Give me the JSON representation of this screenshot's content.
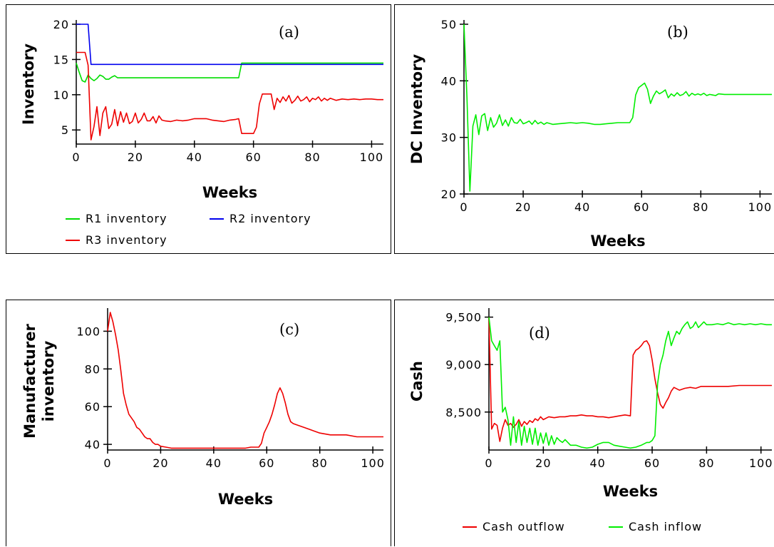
{
  "chart_data": [
    {
      "id": "a",
      "type": "line",
      "panel_label": "(a)",
      "xlabel": "Weeks",
      "ylabel": "Inventory",
      "xlim": [
        0,
        104
      ],
      "ylim": [
        3,
        20
      ],
      "xticks": [
        0,
        20,
        40,
        60,
        80,
        100
      ],
      "yticks": [
        5,
        10,
        15,
        20
      ],
      "legend": "bottom",
      "series": [
        {
          "name": "R1 inventory",
          "color": "#00dd00",
          "x": [
            0,
            1,
            2,
            3,
            4,
            5,
            6,
            7,
            8,
            9,
            10,
            11,
            12,
            13,
            14,
            16,
            20,
            30,
            40,
            50,
            55,
            56,
            57,
            60,
            80,
            104
          ],
          "y": [
            14.5,
            13.2,
            12.0,
            11.8,
            12.8,
            12.3,
            12.0,
            12.3,
            12.8,
            12.6,
            12.2,
            12.2,
            12.5,
            12.7,
            12.4,
            12.4,
            12.4,
            12.4,
            12.4,
            12.4,
            12.4,
            14.5,
            14.5,
            14.5,
            14.5,
            14.5
          ]
        },
        {
          "name": "R2 inventory",
          "color": "#0000ee",
          "x": [
            0,
            3,
            4,
            5,
            104
          ],
          "y": [
            20,
            20,
            20,
            14.3,
            14.3
          ]
        },
        {
          "name": "R3 inventory",
          "color": "#ee0000",
          "x": [
            0,
            3,
            4,
            5,
            6,
            7,
            8,
            9,
            10,
            11,
            12,
            13,
            14,
            15,
            16,
            17,
            18,
            19,
            20,
            21,
            22,
            23,
            24,
            25,
            26,
            27,
            28,
            29,
            30,
            32,
            34,
            36,
            38,
            40,
            42,
            44,
            46,
            48,
            50,
            52,
            54,
            55,
            56,
            58,
            60,
            61,
            62,
            63,
            64,
            65,
            66,
            67,
            68,
            69,
            70,
            71,
            72,
            73,
            74,
            75,
            76,
            77,
            78,
            79,
            80,
            81,
            82,
            83,
            84,
            85,
            86,
            88,
            90,
            92,
            94,
            96,
            98,
            100,
            102,
            104
          ],
          "y": [
            16,
            16,
            14.2,
            3.6,
            5.5,
            8.3,
            4.2,
            7.4,
            8.3,
            5.2,
            5.8,
            7.9,
            5.6,
            7.6,
            6.1,
            7.4,
            5.9,
            6.2,
            7.4,
            6.0,
            6.5,
            7.4,
            6.3,
            6.3,
            6.9,
            6.0,
            7.0,
            6.4,
            6.3,
            6.2,
            6.4,
            6.3,
            6.4,
            6.6,
            6.6,
            6.6,
            6.4,
            6.3,
            6.2,
            6.4,
            6.5,
            6.6,
            4.5,
            4.5,
            4.5,
            5.4,
            8.7,
            10.1,
            10.1,
            10.1,
            10.1,
            7.9,
            9.5,
            8.9,
            9.7,
            9.1,
            9.9,
            8.8,
            9.2,
            9.8,
            9.1,
            9.3,
            9.7,
            9.0,
            9.5,
            9.3,
            9.7,
            9.1,
            9.5,
            9.2,
            9.5,
            9.2,
            9.4,
            9.3,
            9.4,
            9.3,
            9.4,
            9.4,
            9.3,
            9.3
          ]
        }
      ]
    },
    {
      "id": "b",
      "type": "line",
      "panel_label": "(b)",
      "xlabel": "Weeks",
      "ylabel": "DC Inventory",
      "xlim": [
        0,
        104
      ],
      "ylim": [
        20,
        50
      ],
      "xticks": [
        0,
        20,
        40,
        60,
        80,
        100
      ],
      "yticks": [
        20,
        30,
        40,
        50
      ],
      "series": [
        {
          "name": "",
          "color": "#00ee00",
          "x": [
            0,
            1,
            2,
            3,
            4,
            5,
            6,
            7,
            8,
            9,
            10,
            11,
            12,
            13,
            14,
            15,
            16,
            17,
            18,
            19,
            20,
            21,
            22,
            23,
            24,
            25,
            26,
            27,
            28,
            30,
            32,
            34,
            36,
            38,
            40,
            42,
            44,
            46,
            48,
            50,
            52,
            54,
            56,
            57,
            58,
            59,
            60,
            61,
            62,
            63,
            64,
            65,
            66,
            67,
            68,
            69,
            70,
            71,
            72,
            73,
            74,
            75,
            76,
            77,
            78,
            79,
            80,
            81,
            82,
            83,
            84,
            85,
            86,
            88,
            90,
            92,
            96,
            100,
            104
          ],
          "y": [
            50,
            37,
            20.5,
            32.0,
            34.0,
            30.5,
            33.8,
            34.2,
            31.2,
            33.5,
            31.8,
            32.5,
            34.0,
            32.1,
            33.1,
            32.0,
            33.5,
            32.6,
            32.5,
            33.2,
            32.4,
            32.6,
            32.9,
            32.3,
            33.0,
            32.4,
            32.7,
            32.3,
            32.6,
            32.3,
            32.4,
            32.5,
            32.6,
            32.5,
            32.6,
            32.5,
            32.3,
            32.3,
            32.4,
            32.5,
            32.6,
            32.6,
            32.6,
            33.5,
            37.5,
            38.8,
            39.2,
            39.6,
            38.5,
            36.0,
            37.3,
            38.2,
            37.7,
            38.0,
            38.4,
            37.0,
            37.7,
            37.3,
            37.9,
            37.4,
            37.6,
            38.1,
            37.3,
            37.8,
            37.5,
            37.7,
            37.5,
            37.8,
            37.4,
            37.6,
            37.5,
            37.4,
            37.7,
            37.6,
            37.6,
            37.6,
            37.6,
            37.6,
            37.6
          ]
        }
      ]
    },
    {
      "id": "c",
      "type": "line",
      "panel_label": "(c)",
      "xlabel": "Weeks",
      "ylabel": "Manufacturer inventory",
      "xlim": [
        0,
        104
      ],
      "ylim": [
        37,
        110
      ],
      "xticks": [
        0,
        20,
        40,
        60,
        80,
        100
      ],
      "yticks": [
        40,
        60,
        80,
        100
      ],
      "series": [
        {
          "name": "",
          "color": "#ee0000",
          "x": [
            0,
            1,
            2,
            3,
            4,
            5,
            6,
            7,
            8,
            9,
            10,
            11,
            12,
            13,
            14,
            15,
            16,
            17,
            18,
            19,
            20,
            22,
            24,
            26,
            28,
            30,
            34,
            38,
            42,
            46,
            50,
            52,
            54,
            55,
            56,
            57,
            58,
            59,
            60,
            61,
            62,
            63,
            64,
            65,
            66,
            67,
            68,
            69,
            70,
            72,
            74,
            76,
            78,
            80,
            84,
            86,
            90,
            94,
            96,
            100,
            104
          ],
          "y": [
            100,
            110,
            105,
            98,
            90,
            79,
            67,
            61,
            56,
            54,
            52,
            49,
            48,
            46,
            44,
            43,
            43,
            41,
            40,
            40,
            39,
            38.5,
            38,
            38,
            38,
            38,
            38,
            38,
            38,
            38,
            38,
            38,
            38.5,
            38.5,
            38.5,
            38.5,
            40.5,
            46,
            49,
            52,
            56,
            61,
            67,
            70,
            67,
            62,
            56,
            52,
            51,
            50,
            49,
            48,
            47,
            46,
            45,
            45,
            45,
            44,
            44,
            44,
            44
          ]
        }
      ]
    },
    {
      "id": "d",
      "type": "line",
      "panel_label": "(d)",
      "xlabel": "Weeks",
      "ylabel": "Cash",
      "xlim": [
        0,
        104
      ],
      "ylim": [
        8100,
        9550
      ],
      "xticks": [
        0,
        20,
        40,
        60,
        80,
        100
      ],
      "yticks": [
        8500,
        9000,
        9500
      ],
      "ytick_labels": [
        "8,500",
        "9,000",
        "9,500"
      ],
      "legend": "bottom",
      "series": [
        {
          "name": "Cash outflow",
          "color": "#ee0000",
          "x": [
            0,
            1,
            2,
            3,
            4,
            5,
            6,
            7,
            8,
            9,
            10,
            11,
            12,
            13,
            14,
            15,
            16,
            17,
            18,
            19,
            20,
            22,
            24,
            26,
            28,
            30,
            32,
            34,
            36,
            38,
            40,
            42,
            44,
            46,
            48,
            50,
            52,
            53,
            54,
            55,
            56,
            57,
            58,
            59,
            60,
            61,
            62,
            63,
            64,
            65,
            66,
            67,
            68,
            70,
            72,
            74,
            76,
            78,
            80,
            84,
            88,
            92,
            96,
            100,
            104
          ],
          "y": [
            9500,
            8320,
            8380,
            8360,
            8190,
            8330,
            8420,
            8360,
            8380,
            8340,
            8370,
            8420,
            8350,
            8400,
            8370,
            8410,
            8390,
            8430,
            8410,
            8450,
            8420,
            8450,
            8440,
            8450,
            8450,
            8460,
            8460,
            8470,
            8460,
            8460,
            8450,
            8450,
            8440,
            8450,
            8460,
            8470,
            8460,
            9100,
            9150,
            9170,
            9200,
            9240,
            9250,
            9200,
            9050,
            8850,
            8700,
            8580,
            8540,
            8600,
            8650,
            8720,
            8760,
            8730,
            8750,
            8760,
            8750,
            8770,
            8770,
            8770,
            8770,
            8780,
            8780,
            8780,
            8780
          ]
        },
        {
          "name": "Cash inflow",
          "color": "#00ee00",
          "x": [
            0,
            1,
            2,
            3,
            4,
            5,
            6,
            7,
            8,
            9,
            10,
            11,
            12,
            13,
            14,
            15,
            16,
            17,
            18,
            19,
            20,
            21,
            22,
            23,
            24,
            25,
            26,
            27,
            28,
            30,
            32,
            34,
            36,
            38,
            40,
            42,
            44,
            46,
            48,
            50,
            52,
            54,
            56,
            58,
            59,
            60,
            61,
            62,
            63,
            64,
            65,
            66,
            67,
            68,
            69,
            70,
            71,
            72,
            73,
            74,
            75,
            76,
            77,
            78,
            79,
            80,
            82,
            84,
            86,
            88,
            90,
            92,
            94,
            96,
            98,
            100,
            102,
            104
          ],
          "y": [
            9500,
            9250,
            9200,
            9150,
            9250,
            8500,
            8550,
            8420,
            8150,
            8450,
            8180,
            8400,
            8150,
            8350,
            8180,
            8330,
            8160,
            8330,
            8150,
            8280,
            8170,
            8280,
            8150,
            8250,
            8160,
            8230,
            8200,
            8180,
            8210,
            8150,
            8150,
            8130,
            8120,
            8130,
            8160,
            8180,
            8180,
            8150,
            8140,
            8130,
            8120,
            8130,
            8150,
            8180,
            8180,
            8200,
            8250,
            8800,
            9000,
            9100,
            9250,
            9350,
            9200,
            9280,
            9350,
            9320,
            9380,
            9420,
            9450,
            9380,
            9400,
            9450,
            9390,
            9420,
            9450,
            9420,
            9420,
            9430,
            9420,
            9440,
            9420,
            9430,
            9420,
            9430,
            9420,
            9430,
            9420,
            9420
          ]
        }
      ]
    }
  ]
}
